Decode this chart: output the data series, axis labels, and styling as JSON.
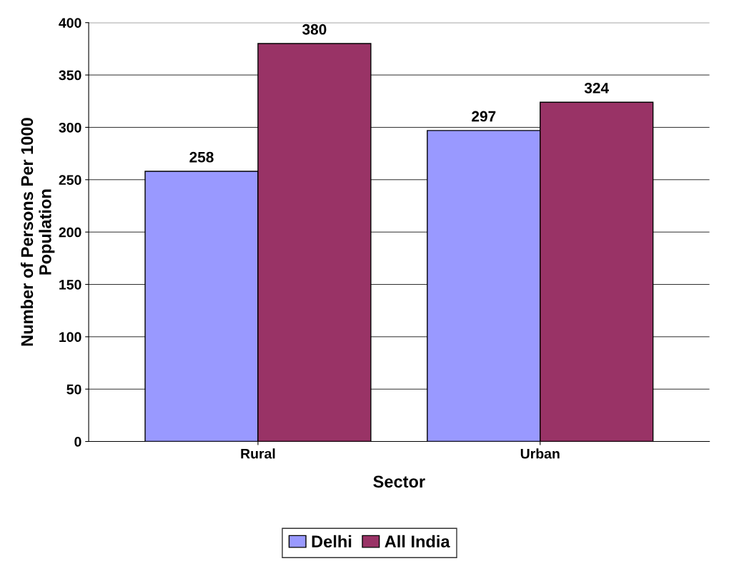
{
  "chart_data": {
    "type": "bar",
    "xlabel": "Sector",
    "ylabel": "Number of Persons Per 1000\nPopulation",
    "categories": [
      "Rural",
      "Urban"
    ],
    "series": [
      {
        "name": "Delhi",
        "color": "#9999ff",
        "values": [
          258,
          297
        ]
      },
      {
        "name": "All India",
        "color": "#993366",
        "values": [
          380,
          324
        ]
      }
    ],
    "ylim": [
      0,
      400
    ],
    "yticks": [
      0,
      50,
      100,
      150,
      200,
      250,
      300,
      350,
      400
    ],
    "grid": "y",
    "legend": "bottom",
    "data_labels": true
  }
}
